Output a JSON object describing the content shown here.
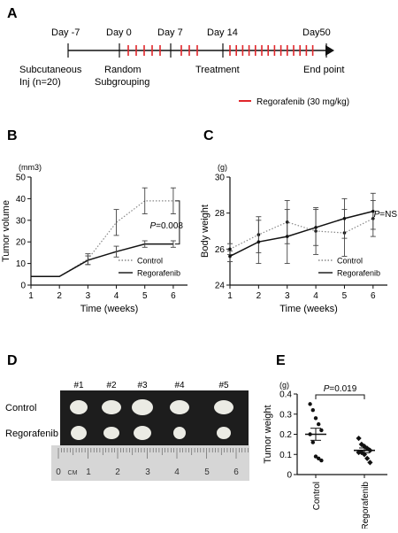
{
  "panels": {
    "A": {
      "label": "A",
      "timeline": {
        "days": [
          "Day -7",
          "Day 0",
          "Day 7",
          "Day 14",
          "Day50"
        ],
        "phases": [
          "Subcutaneous",
          "Inj (n=20)",
          "Random",
          "Subgrouping",
          "Treatment",
          "End point"
        ],
        "legend": "Regorafenib (30 mg/kg)",
        "legend_color": "#e0262b"
      }
    },
    "B": {
      "label": "B"
    },
    "C": {
      "label": "C"
    },
    "D": {
      "label": "D",
      "groups": [
        "Control",
        "Regorafenib"
      ],
      "columns": [
        "#1",
        "#2",
        "#3",
        "#4",
        "#5"
      ],
      "ruler_numbers": [
        "0",
        "CM",
        "1",
        "2",
        "3",
        "4",
        "5",
        "6"
      ]
    },
    "E": {
      "label": "E"
    }
  },
  "chart_data": [
    {
      "panel": "B",
      "type": "line",
      "xlabel": "Time (weeks)",
      "ylabel": "Tumor volume",
      "yunit": "(mm3)",
      "x": [
        1,
        2,
        3,
        4,
        5,
        6
      ],
      "xlim": [
        1,
        6.5
      ],
      "ylim": [
        0,
        50
      ],
      "yticks": [
        0,
        10,
        20,
        30,
        40,
        50
      ],
      "series": [
        {
          "name": "Control",
          "style": "dotted",
          "color": "#888888",
          "x": [
            1,
            2,
            3,
            4,
            5,
            6
          ],
          "y": [
            4,
            4,
            12,
            29,
            39,
            39
          ],
          "err": [
            0,
            0,
            2.5,
            6,
            6,
            6
          ]
        },
        {
          "name": "Regorafenib",
          "style": "solid",
          "color": "#111111",
          "x": [
            1,
            2,
            3,
            4,
            5,
            6
          ],
          "y": [
            4,
            4,
            11.5,
            15.5,
            19,
            19
          ],
          "err": [
            0,
            0,
            2,
            2.5,
            1.5,
            1.5
          ]
        }
      ],
      "annotation": "P=0.008"
    },
    {
      "panel": "C",
      "type": "line",
      "xlabel": "Time (weeks)",
      "ylabel": "Body weight",
      "yunit": "(g)",
      "x": [
        1,
        2,
        3,
        4,
        5,
        6
      ],
      "xlim": [
        1,
        6.5
      ],
      "ylim": [
        24,
        30
      ],
      "yticks": [
        24,
        26,
        28,
        30
      ],
      "series": [
        {
          "name": "Control",
          "style": "dotted",
          "color": "#888888",
          "x": [
            1,
            2,
            3,
            4,
            5,
            6
          ],
          "y": [
            26.0,
            26.8,
            27.5,
            27.0,
            26.9,
            27.7
          ],
          "err": [
            0.3,
            1.0,
            1.2,
            1.3,
            1.3,
            1.0
          ]
        },
        {
          "name": "Regorafenib",
          "style": "solid",
          "color": "#111111",
          "x": [
            1,
            2,
            3,
            4,
            5,
            6
          ],
          "y": [
            25.6,
            26.4,
            26.7,
            27.2,
            27.7,
            28.1
          ],
          "err": [
            0.3,
            1.2,
            1.5,
            1.0,
            1.1,
            1.0
          ]
        }
      ],
      "annotation": "P=NS"
    },
    {
      "panel": "E",
      "type": "scatter",
      "ylabel": "Tumor weight",
      "yunit": "(g)",
      "categories": [
        "Control",
        "Regorafenib"
      ],
      "ylim": [
        0,
        0.4
      ],
      "yticks": [
        0,
        0.1,
        0.2,
        0.3,
        0.4
      ],
      "points": [
        [
          0.35,
          0.32,
          0.28,
          0.25,
          0.22,
          0.2,
          0.16,
          0.09,
          0.08,
          0.07
        ],
        [
          0.18,
          0.15,
          0.14,
          0.13,
          0.12,
          0.11,
          0.11,
          0.1,
          0.08,
          0.06
        ]
      ],
      "mean": [
        0.2,
        0.12
      ],
      "sem": [
        0.03,
        0.012
      ],
      "annotation": "P=0.019"
    }
  ]
}
